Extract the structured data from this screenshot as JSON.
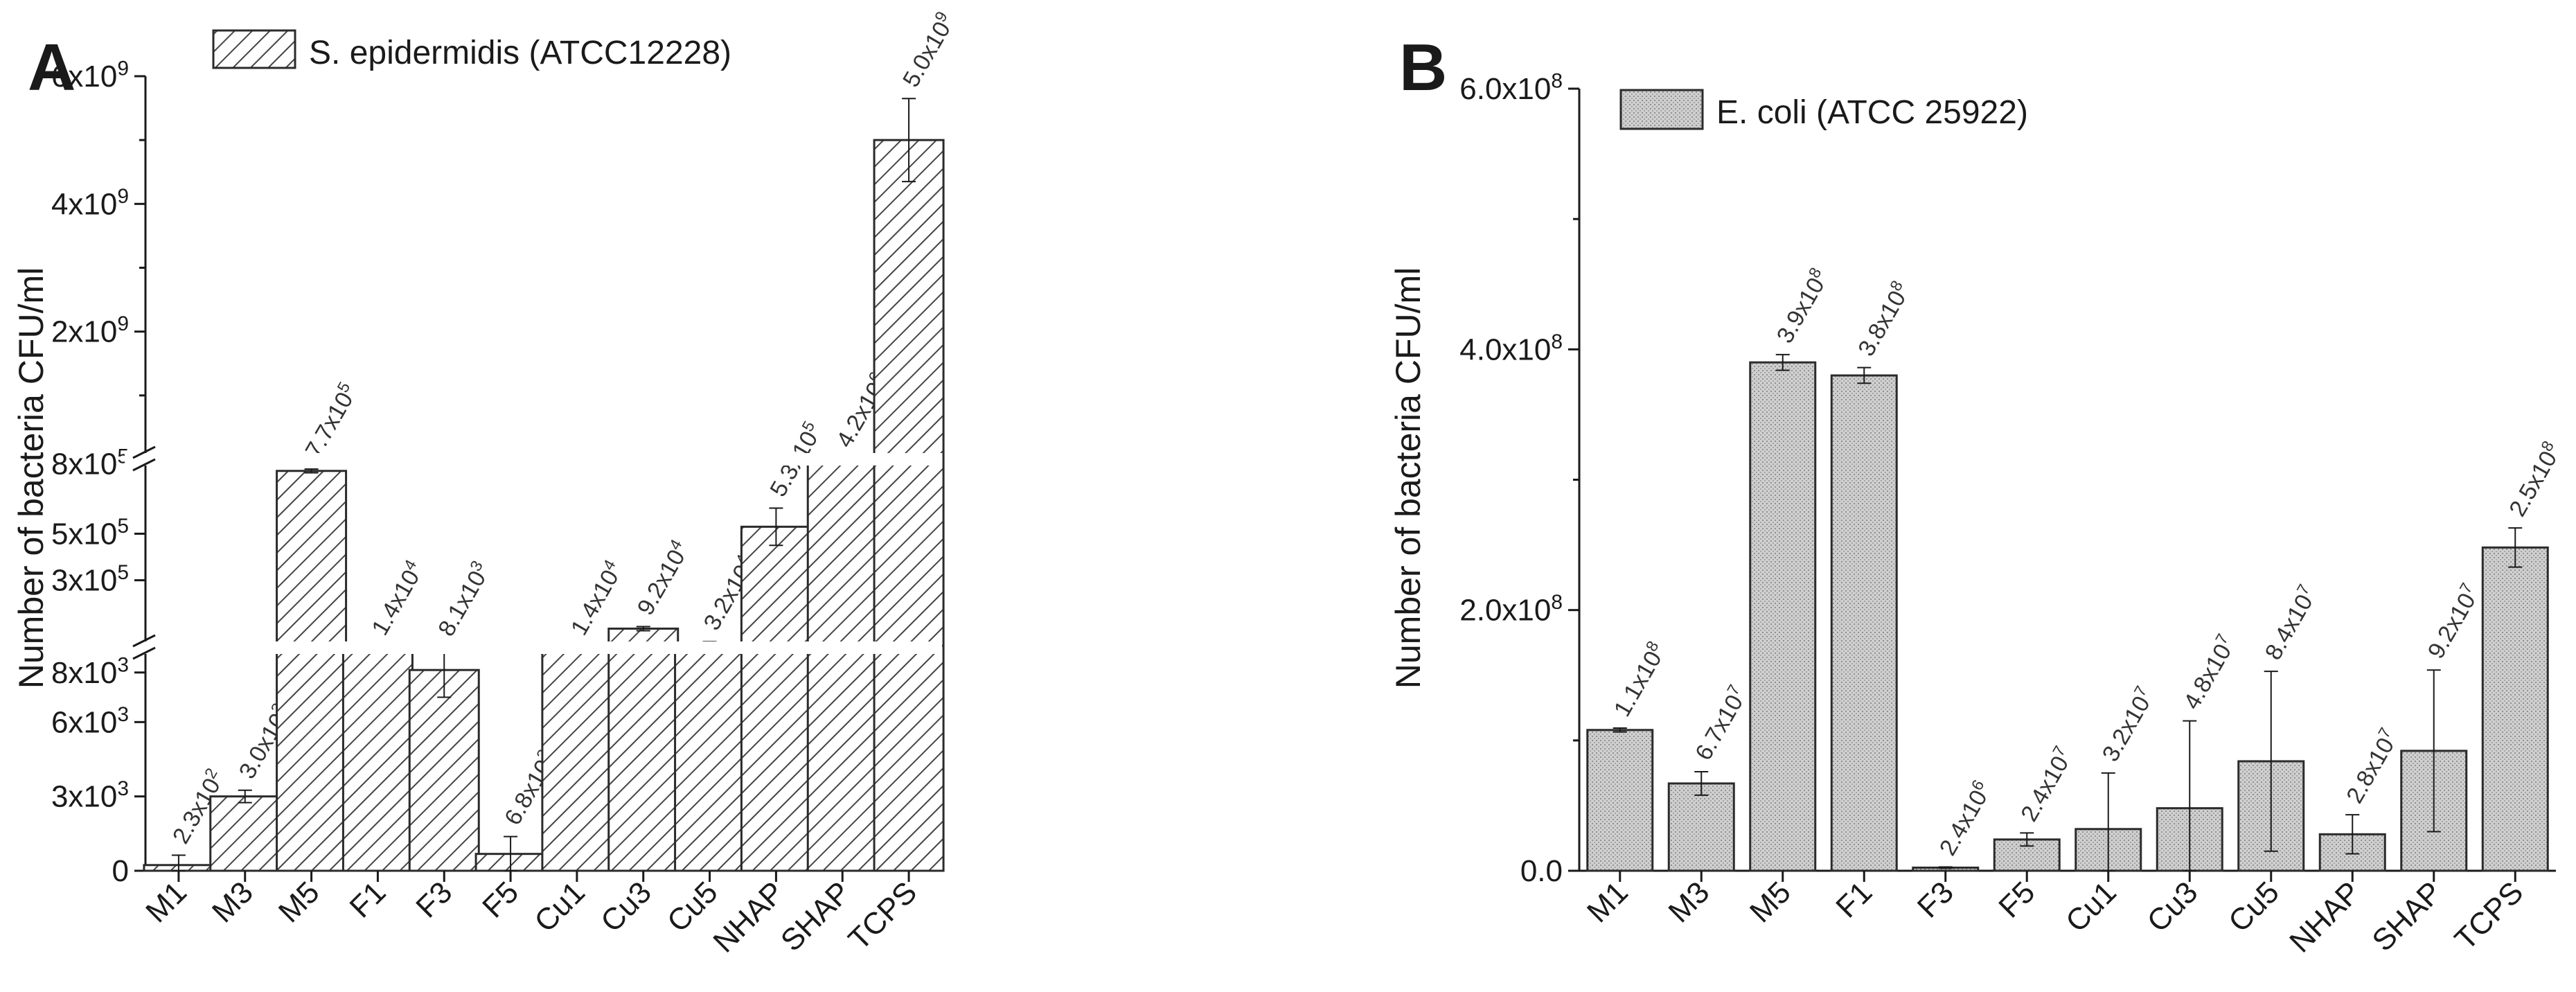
{
  "colors": {
    "axis": "#1a1a1a",
    "bar_outline": "#2b2b2b",
    "hatch": "#444444",
    "stipple_fill": "#c9c9c9",
    "text": "#1a1a1a"
  },
  "chart_data": [
    {
      "panel_letter": "A",
      "type": "bar",
      "scale": "broken",
      "legend": "S. epidermidis (ATCC12228)",
      "legend_position": "top-left",
      "ylabel": "Number of bacteria CFU/ml",
      "xlabel": "",
      "categories": [
        "M1",
        "M3",
        "M5",
        "F1",
        "F3",
        "F5",
        "Cu1",
        "Cu3",
        "Cu5",
        "NHAP",
        "SHAP",
        "TCPS"
      ],
      "series": [
        {
          "name": "S. epidermidis (ATCC12228)",
          "fill": "hatched",
          "values": [
            230,
            3000,
            770000,
            14000,
            8100,
            680,
            14000,
            92000,
            32000,
            530000,
            4200000,
            5000000000
          ],
          "errors": [
            400,
            250,
            8000,
            null,
            1100,
            700,
            null,
            9000,
            4000,
            80000,
            null,
            650000000
          ],
          "labels": [
            "2.3x10",
            "3.0x10",
            "7.7x10",
            "1.4x10",
            "8.1x10",
            "6.8x10",
            "1.4x10",
            "9.2x10",
            "3.2x10",
            "5.3x10",
            "4.2x10",
            "5.0x10"
          ],
          "label_exponents": [
            "2",
            "3",
            "5",
            "4",
            "3",
            "2",
            "4",
            "4",
            "4",
            "5",
            "6",
            "9"
          ]
        }
      ],
      "axis_segments": [
        {
          "range": [
            0,
            9000
          ],
          "ticks": [
            0,
            3000,
            6000,
            8000
          ],
          "tick_labels": [
            "0",
            "3x10",
            "6x10",
            "8x10"
          ],
          "tick_exponents": [
            "",
            "3",
            "3",
            "3"
          ]
        },
        {
          "range": [
            10000,
            820000
          ],
          "ticks": [
            300000,
            500000,
            800000
          ],
          "tick_labels": [
            "3x10",
            "5x10",
            "8x10"
          ],
          "tick_exponents": [
            "5",
            "5",
            "5"
          ]
        },
        {
          "range": [
            0,
            6000000000
          ],
          "ticks": [
            2000000000,
            4000000000,
            6000000000
          ],
          "tick_labels": [
            "2x10",
            "4x10",
            "6x10"
          ],
          "tick_exponents": [
            "9",
            "9",
            "9"
          ]
        }
      ]
    },
    {
      "panel_letter": "B",
      "type": "bar",
      "scale": "linear",
      "legend": "E. coli (ATCC 25922)",
      "legend_position": "top-left",
      "ylabel": "Number of bacteria CFU/ml",
      "xlabel": "",
      "ylim": [
        0,
        600000000
      ],
      "yticks": [
        0,
        200000000,
        400000000,
        600000000
      ],
      "ytick_labels": [
        "0.0",
        "2.0x10",
        "4.0x10",
        "6.0x10"
      ],
      "ytick_exponents": [
        "",
        "8",
        "8",
        "8"
      ],
      "categories": [
        "M1",
        "M3",
        "M5",
        "F1",
        "F3",
        "F5",
        "Cu1",
        "Cu3",
        "Cu5",
        "NHAP",
        "SHAP",
        "TCPS"
      ],
      "series": [
        {
          "name": "E. coli (ATCC 25922)",
          "fill": "stippled",
          "values": [
            108000000,
            67000000,
            390000000,
            380000000,
            2400000,
            24000000,
            32000000,
            48000000,
            84000000,
            28000000,
            92000000,
            248000000
          ],
          "errors": [
            1500000,
            9000000,
            6000000,
            6000000,
            500000,
            5000000,
            43000000,
            67000000,
            69000000,
            15000000,
            62000000,
            15000000
          ],
          "labels": [
            "1.1x10",
            "6.7x10",
            "3.9x10",
            "3.8x10",
            "2.4x10",
            "2.4x10",
            "3.2x10",
            "4.8x10",
            "8.4x10",
            "2.8x10",
            "9.2x10",
            "2.5x10"
          ],
          "label_exponents": [
            "8",
            "7",
            "8",
            "8",
            "6",
            "7",
            "7",
            "7",
            "7",
            "7",
            "7",
            "8"
          ]
        }
      ]
    }
  ]
}
